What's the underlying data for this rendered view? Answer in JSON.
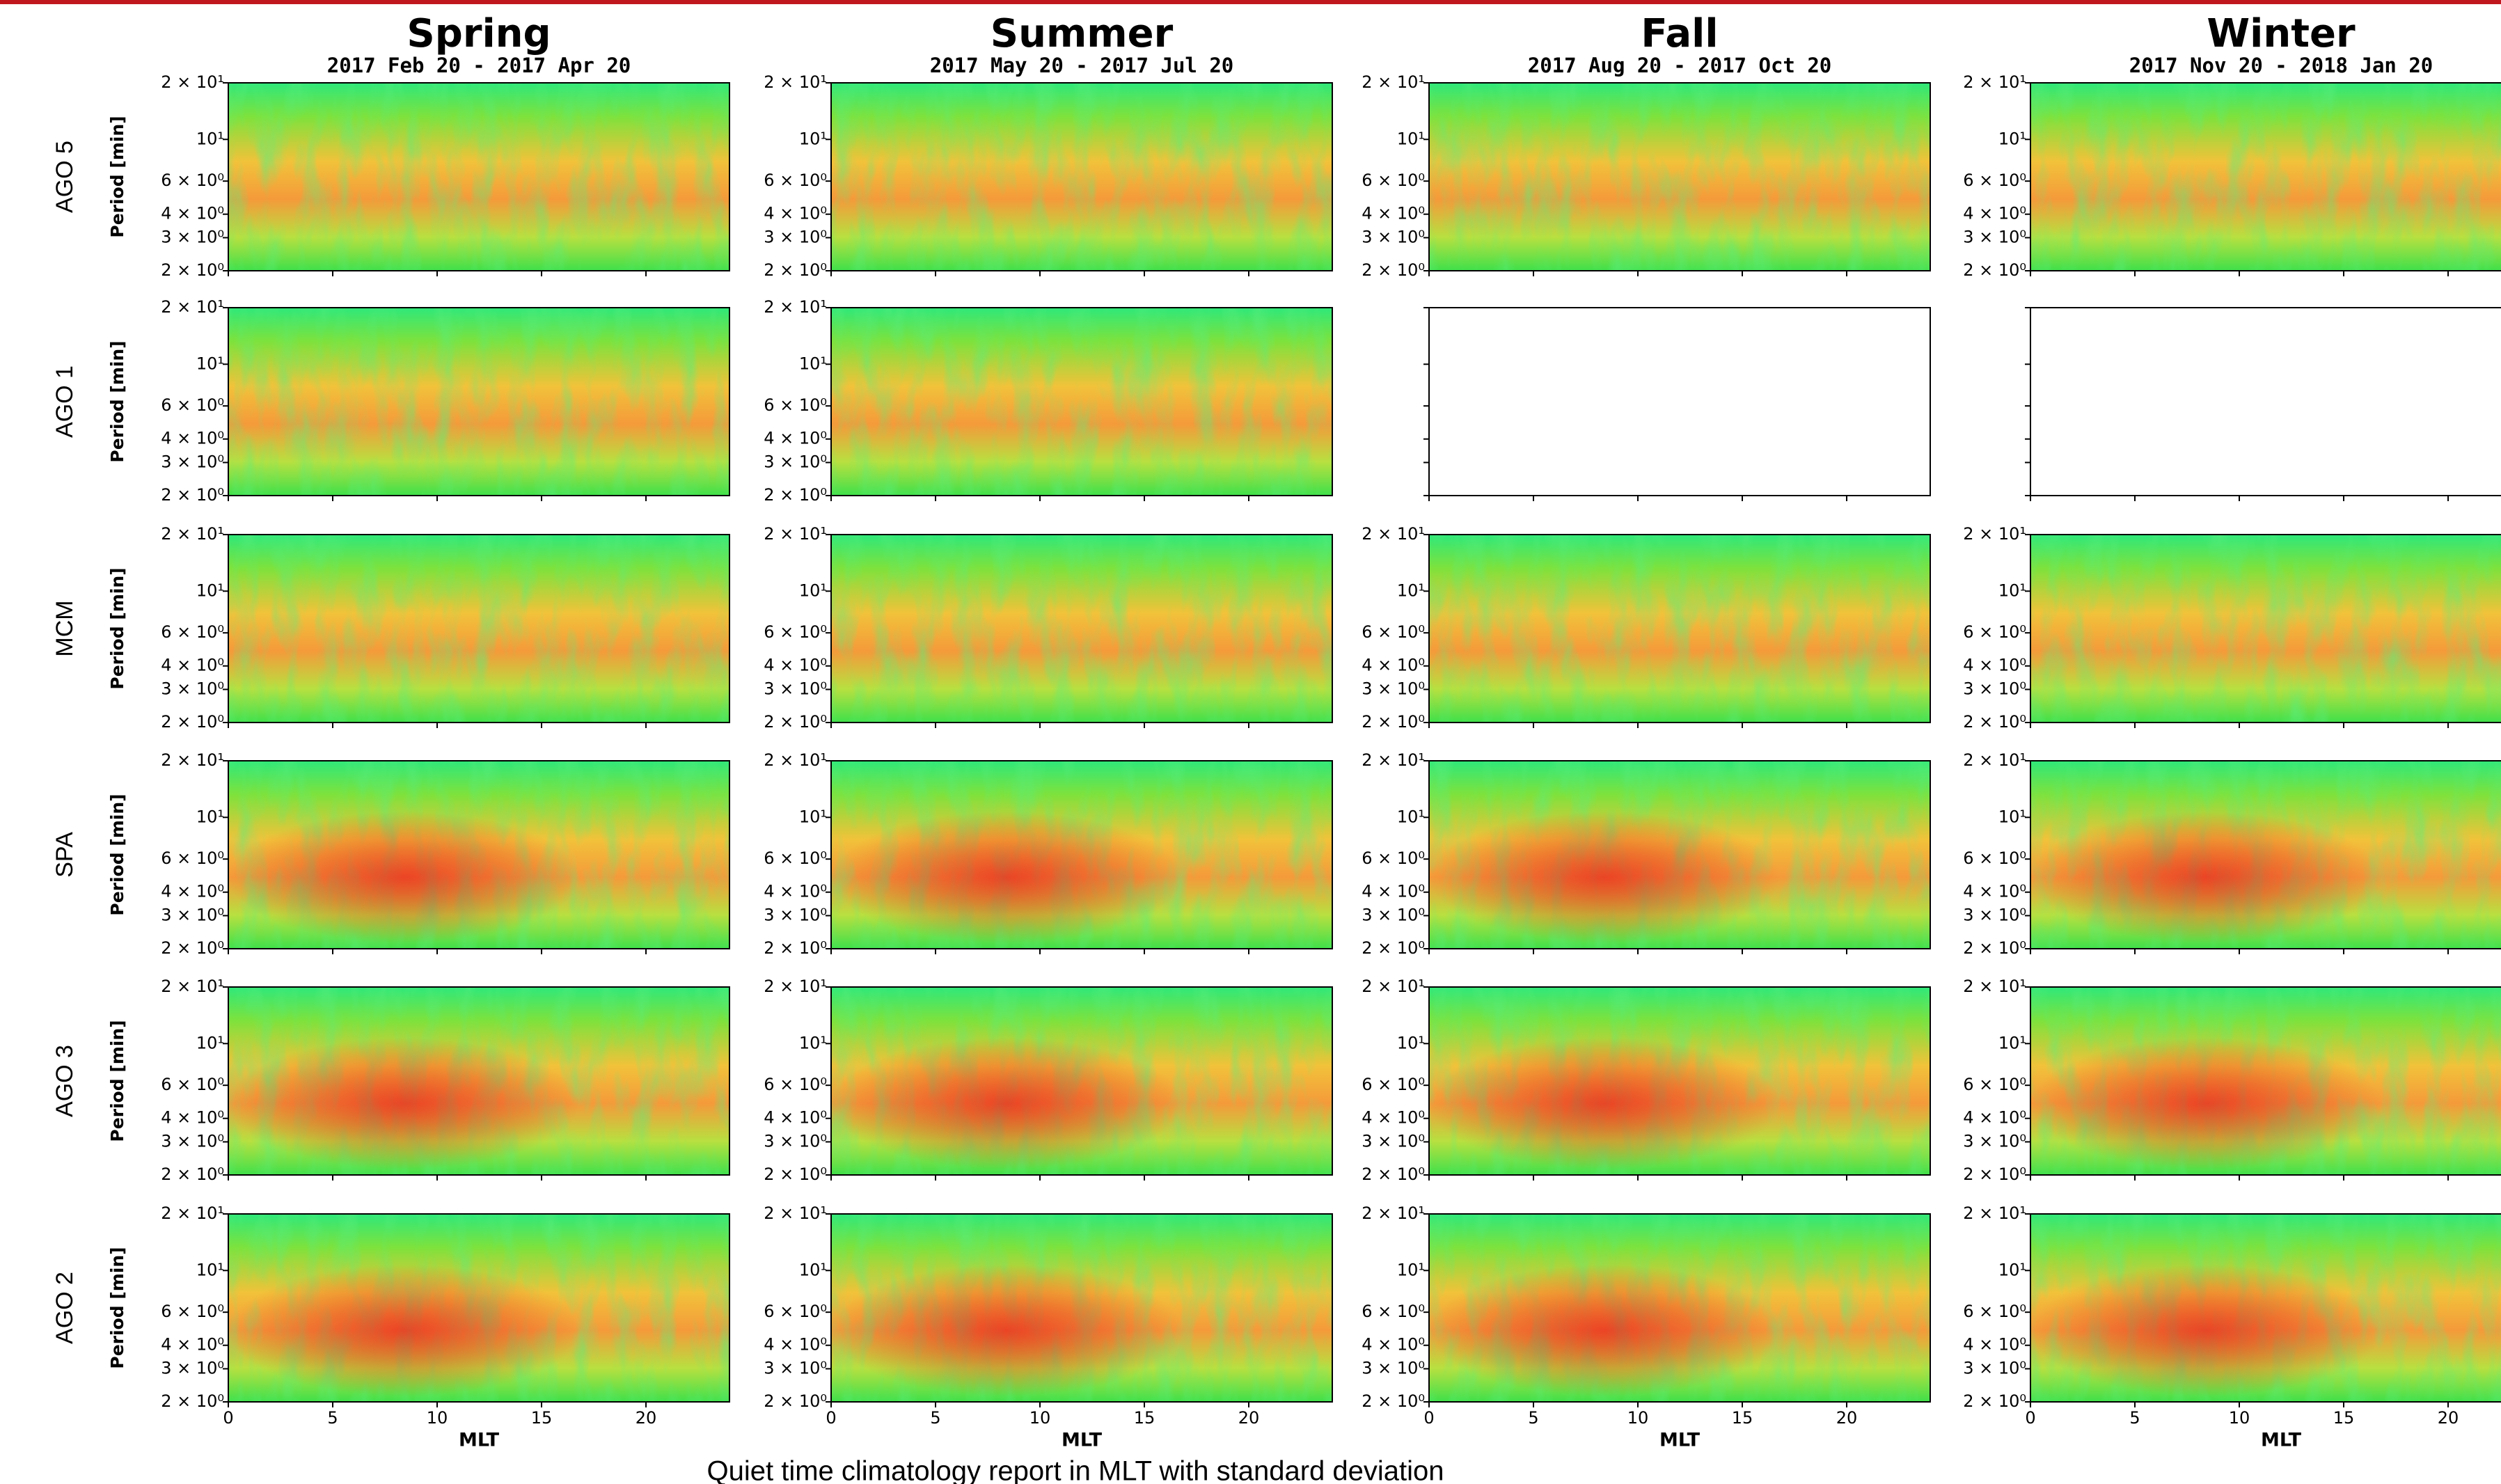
{
  "chart_data": {
    "type": "heatmap-grid",
    "columns": [
      {
        "title": "Spring",
        "subtitle": "2017 Feb 20 - 2017 Apr 20"
      },
      {
        "title": "Summer",
        "subtitle": "2017 May 20 - 2017 Jul 20"
      },
      {
        "title": "Fall",
        "subtitle": "2017 Aug 20 - 2017 Oct 20"
      },
      {
        "title": "Winter",
        "subtitle": "2017 Nov 20 - 2018 Jan 20"
      }
    ],
    "rows": [
      {
        "station": "AGO 5",
        "has_data": [
          true,
          true,
          true,
          true
        ]
      },
      {
        "station": "AGO 1",
        "has_data": [
          true,
          true,
          false,
          false
        ]
      },
      {
        "station": "MCM",
        "has_data": [
          true,
          true,
          true,
          true
        ]
      },
      {
        "station": "SPA",
        "has_data": [
          true,
          true,
          true,
          true
        ]
      },
      {
        "station": "AGO 3",
        "has_data": [
          true,
          true,
          true,
          true
        ]
      },
      {
        "station": "AGO 2",
        "has_data": [
          true,
          true,
          true,
          true
        ]
      }
    ],
    "ylabel": "Period [min]",
    "ylog": true,
    "ylim": [
      2,
      20
    ],
    "yticks": [
      {
        "value": 2,
        "label": "2 × 10⁰"
      },
      {
        "value": 3,
        "label": "3 × 10⁰"
      },
      {
        "value": 4,
        "label": "4 × 10⁰"
      },
      {
        "value": 6,
        "label": "6 × 10⁰"
      },
      {
        "value": 10,
        "label": "10¹"
      },
      {
        "value": 20,
        "label": "2 × 10¹"
      }
    ],
    "xlabel": "MLT",
    "xlim": [
      0,
      24
    ],
    "xticks": [
      0,
      5,
      10,
      15,
      20
    ],
    "caption": "Quiet time climatology report in MLT with standard deviation"
  }
}
